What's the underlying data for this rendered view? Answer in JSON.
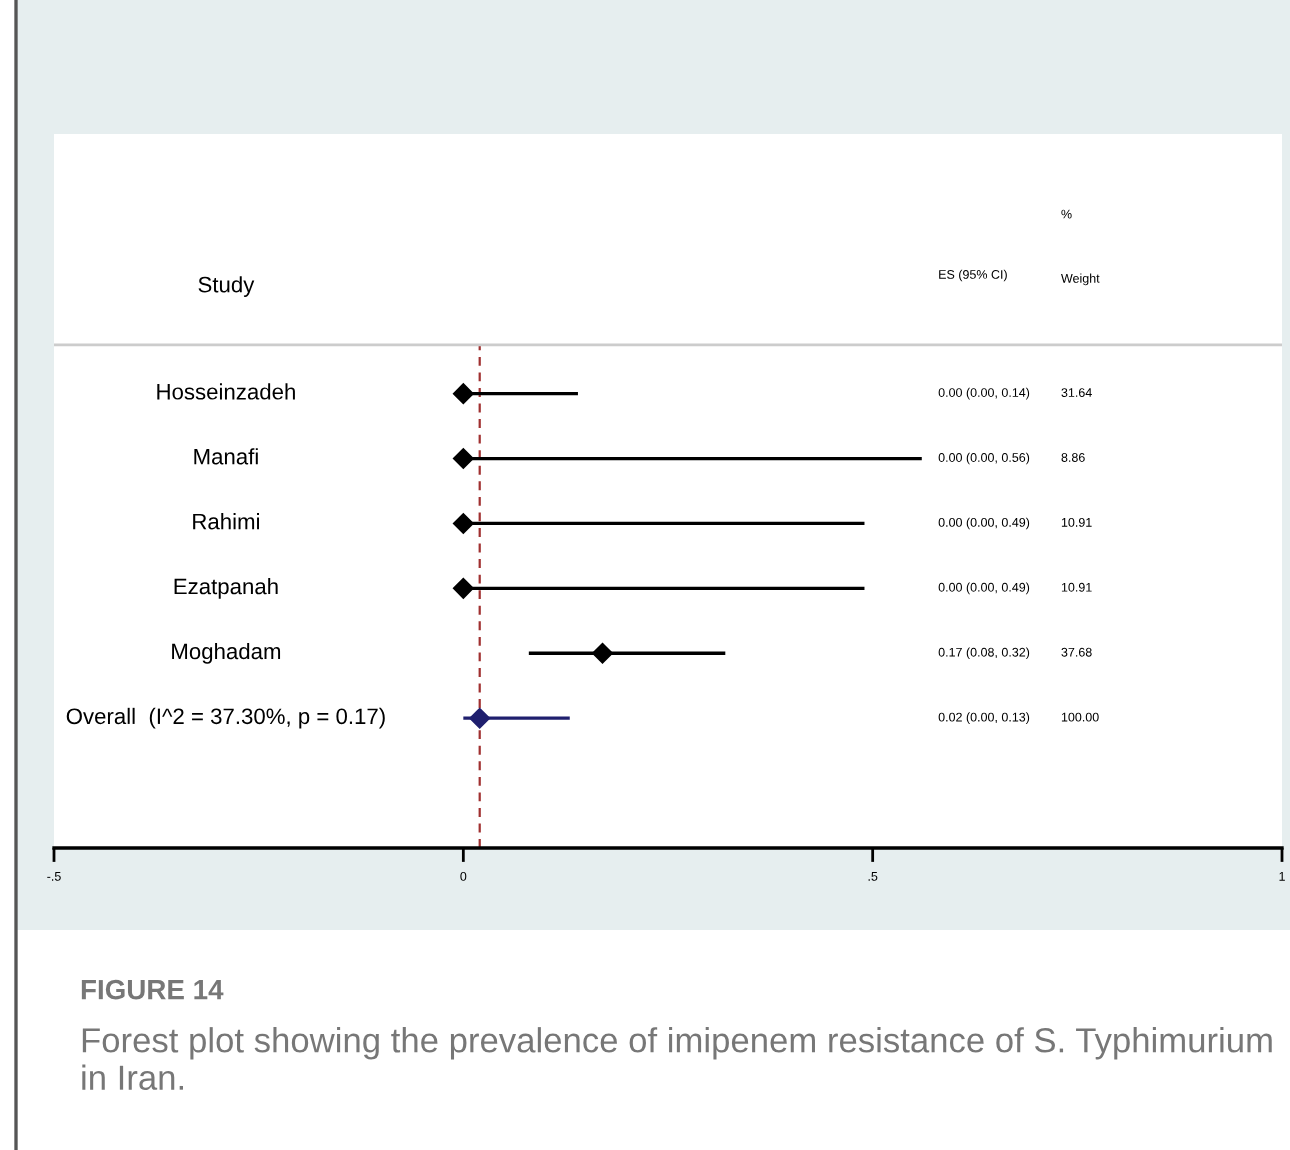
{
  "chart_data": {
    "type": "scatter",
    "orientation": "horizontal",
    "title": "FIGURE 14",
    "subtitle": "Forest plot showing the prevalence of imipenem resistance of S. Typhimurium in Iran.",
    "categories": [
      "Hosseinzadeh",
      "Manafi",
      "Rahimi",
      "Ezatpanah",
      "Moghadam",
      "Overall  (I^2 = 37.30%, p = 0.17)"
    ],
    "xlim": [
      -0.5,
      1
    ],
    "xticks": [
      {
        "value": -0.5,
        "label": "-.5"
      },
      0,
      {
        "value": 0.5,
        "label": ".5"
      },
      1
    ],
    "ref_lines": [
      {
        "axis": "x",
        "value": 0.02,
        "color": "#a03030",
        "line_style": "dashed"
      }
    ],
    "marker": "diamond",
    "grid": false,
    "legend": false,
    "tick_labels": "x",
    "annotations": [
      "Study",
      "ES (95% CI)",
      "%",
      "Weight",
      "0.00 (0.00, 0.14)",
      "0.00 (0.00, 0.56)",
      "0.00 (0.00, 0.49)",
      "0.00 (0.00, 0.49)",
      "0.17 (0.08, 0.32)",
      "0.02 (0.00, 0.13)",
      "31.64",
      "8.86",
      "10.91",
      "10.91",
      "37.68",
      "100.00"
    ],
    "series": [
      {
        "color": "#000000",
        "values": [
          0,
          0,
          0,
          0,
          0.17,
          null
        ],
        "errors": [
          [
            0,
            0.14
          ],
          [
            0,
            0.56
          ],
          [
            0,
            0.49
          ],
          [
            0,
            0.49
          ],
          [
            0.08,
            0.32
          ],
          null
        ]
      },
      {
        "color": "#1f1f6e",
        "values": [
          null,
          null,
          null,
          null,
          null,
          0.02
        ],
        "errors": [
          null,
          null,
          null,
          null,
          null,
          [
            0,
            0.13
          ]
        ]
      }
    ]
  }
}
